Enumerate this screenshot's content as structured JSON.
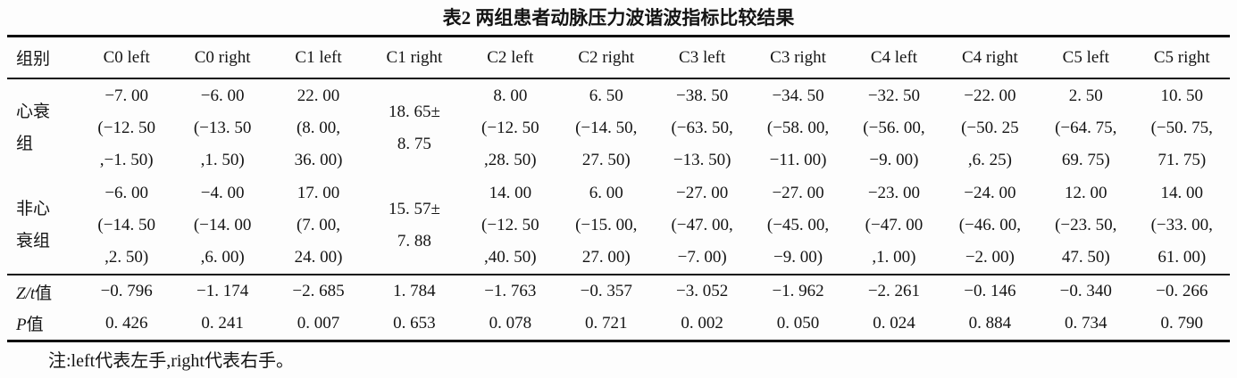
{
  "title": "表2  两组患者动脉压力波谐波指标比较结果",
  "note": "注:left代表左手,right代表右手。",
  "table": {
    "group_header": "组别",
    "columns": [
      "C0 left",
      "C0 right",
      "C1 left",
      "C1 right",
      "C2 left",
      "C2 right",
      "C3 left",
      "C3 right",
      "C4 left",
      "C4 right",
      "C5 left",
      "C5 right"
    ],
    "rows": [
      {
        "label": "心衰组",
        "label_lines": [
          "心衰",
          "组"
        ],
        "cells": [
          [
            "−7. 00",
            "(−12. 50",
            ",−1. 50)"
          ],
          [
            "−6. 00",
            "(−13. 50",
            ",1. 50)"
          ],
          [
            "22. 00",
            "(8. 00,",
            "36. 00)"
          ],
          [
            "18. 65±",
            "8. 75"
          ],
          [
            "8. 00",
            "(−12. 50",
            ",28. 50)"
          ],
          [
            "6. 50",
            "(−14. 50,",
            "27. 50)"
          ],
          [
            "−38. 50",
            "(−63. 50,",
            "−13. 50)"
          ],
          [
            "−34. 50",
            "(−58. 00,",
            "−11. 00)"
          ],
          [
            "−32. 50",
            "(−56. 00,",
            "−9. 00)"
          ],
          [
            "−22. 00",
            "(−50. 25",
            ",6. 25)"
          ],
          [
            "2. 50",
            "(−64. 75,",
            "69. 75)"
          ],
          [
            "10. 50",
            "(−50. 75,",
            "71. 75)"
          ]
        ]
      },
      {
        "label": "非心衰组",
        "label_lines": [
          "非心",
          "衰组"
        ],
        "cells": [
          [
            "−6. 00",
            "(−14. 50",
            ",2. 50)"
          ],
          [
            "−4. 00",
            "(−14. 00",
            ",6. 00)"
          ],
          [
            "17. 00",
            "(7. 00,",
            "24. 00)"
          ],
          [
            "15. 57±",
            "7. 88"
          ],
          [
            "14. 00",
            "(−12. 50",
            ",40. 50)"
          ],
          [
            "6. 00",
            "(−15. 00,",
            "27. 00)"
          ],
          [
            "−27. 00",
            "(−47. 00,",
            "−7. 00)"
          ],
          [
            "−27. 00",
            "(−45. 00,",
            "−9. 00)"
          ],
          [
            "−23. 00",
            "(−47. 00",
            ",1. 00)"
          ],
          [
            "−24. 00",
            "(−46. 00,",
            "−2. 00)"
          ],
          [
            "12. 00",
            "(−23. 50,",
            "47. 50)"
          ],
          [
            "14. 00",
            "(−33. 00,",
            "61. 00)"
          ]
        ]
      }
    ],
    "stat_rows": [
      {
        "label_italic": "Z/t",
        "label_suffix": "值",
        "values": [
          "−0. 796",
          "−1. 174",
          "−2. 685",
          "1. 784",
          "−1. 763",
          "−0. 357",
          "−3. 052",
          "−1. 962",
          "−2. 261",
          "−0. 146",
          "−0. 340",
          "−0. 266"
        ]
      },
      {
        "label_italic": "P",
        "label_suffix": "值",
        "values": [
          "0. 426",
          "0. 241",
          "0. 007",
          "0. 653",
          "0. 078",
          "0. 721",
          "0. 002",
          "0. 050",
          "0. 024",
          "0. 884",
          "0. 734",
          "0. 790"
        ]
      }
    ]
  }
}
